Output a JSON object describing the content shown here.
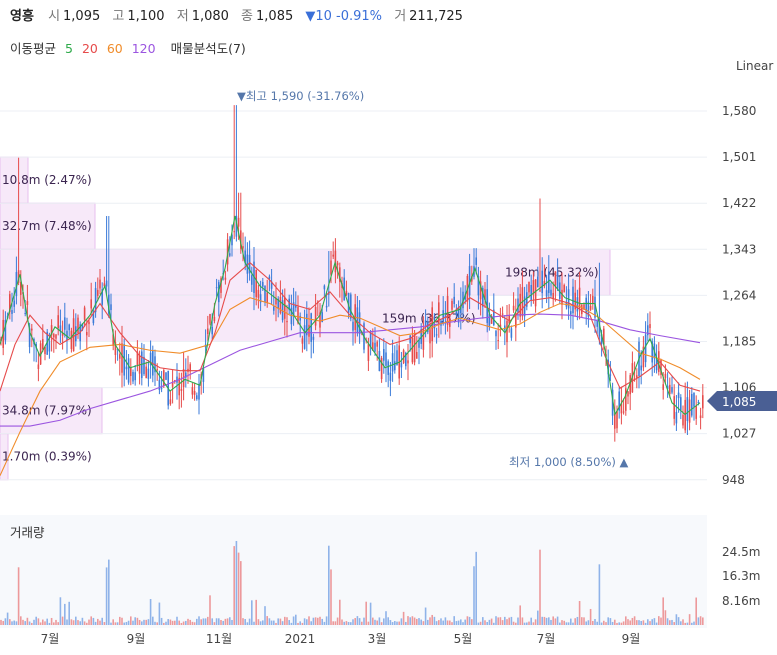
{
  "header": {
    "name": "영흥",
    "open_label": "시",
    "open": "1,095",
    "high_label": "고",
    "high": "1,100",
    "low_label": "저",
    "low": "1,080",
    "close_label": "종",
    "close": "1,085",
    "change": "▼10 -0.91%",
    "volume_label": "거",
    "volume": "211,725"
  },
  "indicators": {
    "ma_label": "이동평균",
    "ma5": "5",
    "ma20": "20",
    "ma60": "60",
    "ma120": "120",
    "vp_label": "매물분석도(7)",
    "colors": {
      "ma5": "#2eaa4a",
      "ma20": "#e64b4b",
      "ma60": "#f08c2a",
      "ma120": "#9b55e0"
    }
  },
  "scale_label": "Linear",
  "volume_title": "거래량",
  "chart_data": {
    "type": "candlestick",
    "y_ticks": [
      1580,
      1501,
      1422,
      1343,
      1264,
      1185,
      1106,
      1027,
      948
    ],
    "y_tick_labels": [
      "1,580",
      "1,501",
      "1,422",
      "1,343",
      "1,264",
      "1,185",
      "1,106",
      "1,027",
      "948"
    ],
    "x_tick_labels": [
      "7월",
      "9월",
      "11월",
      "2021",
      "3월",
      "5월",
      "7월",
      "9월"
    ],
    "current_price": "1,085",
    "annotations": {
      "high": "▼최고 1,590 (-31.76%)",
      "low": "최저 1,000 (8.50%) ▲"
    },
    "volume_profile": [
      {
        "label": "10.8m (2.47%)",
        "from": 1422,
        "to": 1501,
        "share": 2.47
      },
      {
        "label": "32.7m (7.48%)",
        "from": 1343,
        "to": 1422,
        "share": 7.48
      },
      {
        "label": "198m (45.32%)",
        "from": 1264,
        "to": 1343,
        "share": 45.32
      },
      {
        "label": "159m (36.37%)",
        "from": 1185,
        "to": 1264,
        "share": 36.37
      },
      {
        "label": "34.8m (7.97%)",
        "from": 1027,
        "to": 1106,
        "share": 7.97
      },
      {
        "label": "1.70m (0.39%)",
        "from": 948,
        "to": 1027,
        "share": 0.39
      }
    ],
    "volume_ticks": [
      "24.5m",
      "16.3m",
      "8.16m"
    ],
    "ma_series": {
      "ma60": [
        [
          0,
          955
        ],
        [
          20,
          1030
        ],
        [
          40,
          1100
        ],
        [
          60,
          1150
        ],
        [
          90,
          1175
        ],
        [
          120,
          1180
        ],
        [
          150,
          1170
        ],
        [
          180,
          1165
        ],
        [
          210,
          1180
        ],
        [
          230,
          1240
        ],
        [
          250,
          1260
        ],
        [
          270,
          1250
        ],
        [
          290,
          1230
        ],
        [
          320,
          1220
        ],
        [
          340,
          1230
        ],
        [
          360,
          1225
        ],
        [
          380,
          1210
        ],
        [
          400,
          1195
        ],
        [
          420,
          1200
        ],
        [
          440,
          1215
        ],
        [
          460,
          1225
        ],
        [
          480,
          1215
        ],
        [
          500,
          1205
        ],
        [
          520,
          1215
        ],
        [
          540,
          1235
        ],
        [
          560,
          1250
        ],
        [
          580,
          1245
        ],
        [
          600,
          1225
        ],
        [
          620,
          1195
        ],
        [
          640,
          1165
        ],
        [
          660,
          1155
        ],
        [
          680,
          1140
        ],
        [
          700,
          1120
        ]
      ],
      "ma120": [
        [
          0,
          1040
        ],
        [
          30,
          1040
        ],
        [
          60,
          1050
        ],
        [
          90,
          1070
        ],
        [
          120,
          1085
        ],
        [
          150,
          1100
        ],
        [
          180,
          1120
        ],
        [
          210,
          1145
        ],
        [
          240,
          1170
        ],
        [
          270,
          1185
        ],
        [
          300,
          1200
        ],
        [
          330,
          1200
        ],
        [
          360,
          1200
        ],
        [
          390,
          1205
        ],
        [
          420,
          1210
        ],
        [
          450,
          1218
        ],
        [
          480,
          1225
        ],
        [
          510,
          1230
        ],
        [
          540,
          1232
        ],
        [
          570,
          1230
        ],
        [
          600,
          1220
        ],
        [
          630,
          1205
        ],
        [
          660,
          1195
        ],
        [
          700,
          1183
        ]
      ],
      "ma20": [
        [
          0,
          1100
        ],
        [
          15,
          1180
        ],
        [
          30,
          1230
        ],
        [
          45,
          1200
        ],
        [
          60,
          1180
        ],
        [
          80,
          1200
        ],
        [
          100,
          1250
        ],
        [
          120,
          1200
        ],
        [
          140,
          1160
        ],
        [
          160,
          1140
        ],
        [
          180,
          1135
        ],
        [
          200,
          1135
        ],
        [
          215,
          1200
        ],
        [
          230,
          1290
        ],
        [
          250,
          1320
        ],
        [
          270,
          1290
        ],
        [
          290,
          1250
        ],
        [
          310,
          1240
        ],
        [
          330,
          1270
        ],
        [
          350,
          1230
        ],
        [
          370,
          1200
        ],
        [
          390,
          1180
        ],
        [
          410,
          1190
        ],
        [
          430,
          1215
        ],
        [
          450,
          1230
        ],
        [
          470,
          1260
        ],
        [
          490,
          1240
        ],
        [
          510,
          1220
        ],
        [
          530,
          1255
        ],
        [
          550,
          1260
        ],
        [
          570,
          1250
        ],
        [
          590,
          1230
        ],
        [
          605,
          1160
        ],
        [
          620,
          1105
        ],
        [
          640,
          1125
        ],
        [
          660,
          1150
        ],
        [
          680,
          1110
        ],
        [
          700,
          1100
        ]
      ],
      "ma5": [
        [
          0,
          1180
        ],
        [
          10,
          1240
        ],
        [
          20,
          1300
        ],
        [
          30,
          1200
        ],
        [
          40,
          1160
        ],
        [
          55,
          1210
        ],
        [
          70,
          1190
        ],
        [
          90,
          1230
        ],
        [
          105,
          1280
        ],
        [
          115,
          1180
        ],
        [
          130,
          1140
        ],
        [
          150,
          1150
        ],
        [
          170,
          1100
        ],
        [
          185,
          1120
        ],
        [
          200,
          1110
        ],
        [
          215,
          1250
        ],
        [
          225,
          1310
        ],
        [
          235,
          1400
        ],
        [
          245,
          1320
        ],
        [
          260,
          1280
        ],
        [
          275,
          1260
        ],
        [
          290,
          1240
        ],
        [
          305,
          1200
        ],
        [
          320,
          1230
        ],
        [
          335,
          1320
        ],
        [
          350,
          1240
        ],
        [
          365,
          1190
        ],
        [
          385,
          1140
        ],
        [
          400,
          1150
        ],
        [
          420,
          1190
        ],
        [
          440,
          1230
        ],
        [
          460,
          1240
        ],
        [
          475,
          1310
        ],
        [
          490,
          1230
        ],
        [
          505,
          1200
        ],
        [
          520,
          1250
        ],
        [
          535,
          1270
        ],
        [
          550,
          1290
        ],
        [
          565,
          1260
        ],
        [
          580,
          1250
        ],
        [
          595,
          1250
        ],
        [
          605,
          1170
        ],
        [
          615,
          1060
        ],
        [
          625,
          1090
        ],
        [
          640,
          1160
        ],
        [
          650,
          1190
        ],
        [
          660,
          1140
        ],
        [
          672,
          1080
        ],
        [
          685,
          1060
        ],
        [
          700,
          1080
        ]
      ]
    }
  }
}
